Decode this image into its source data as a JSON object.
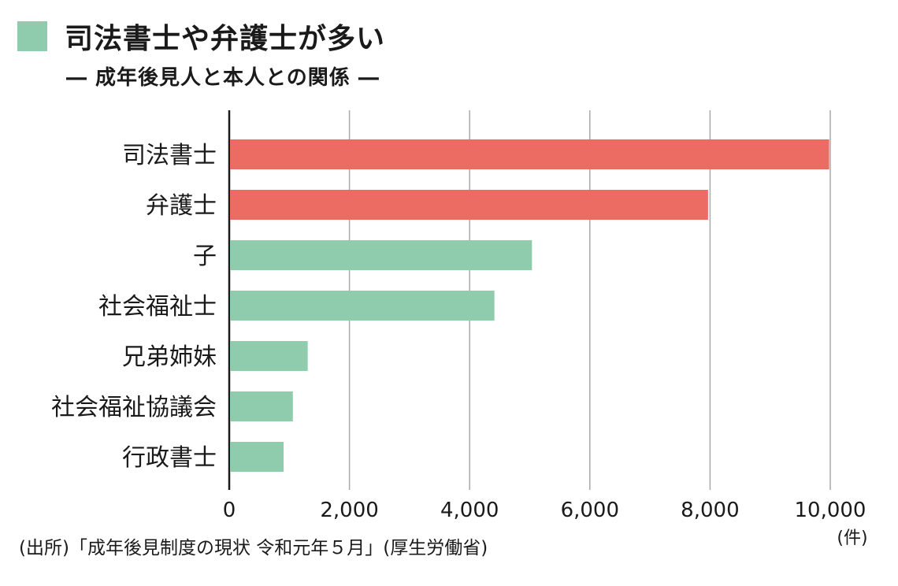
{
  "header": {
    "title": "司法書士や弁護士が多い",
    "subtitle": "― 成年後見人と本人との関係 ―"
  },
  "colors": {
    "accent": "#8fcbad",
    "highlight": "#ec6b63",
    "grid": "#a9a9a9",
    "axis": "#1a1a1a"
  },
  "chart_data": {
    "type": "bar",
    "orientation": "horizontal",
    "categories": [
      "司法書士",
      "弁護士",
      "子",
      "社会福祉士",
      "兄弟姉妹",
      "社会福祉協議会",
      "行政書士"
    ],
    "values": [
      9982,
      7967,
      5037,
      4412,
      1306,
      1059,
      905
    ],
    "highlighted": [
      true,
      true,
      false,
      false,
      false,
      false,
      false
    ],
    "xlim": [
      0,
      10000
    ],
    "xticks": [
      0,
      2000,
      4000,
      6000,
      8000,
      10000
    ],
    "xtick_labels": [
      "0",
      "2,000",
      "4,000",
      "6,000",
      "8,000",
      "10,000"
    ],
    "unit": "(件)",
    "grid": "vertical"
  },
  "footer": {
    "source": "(出所)「成年後見制度の現状 令和元年５月」(厚生労働省)"
  }
}
